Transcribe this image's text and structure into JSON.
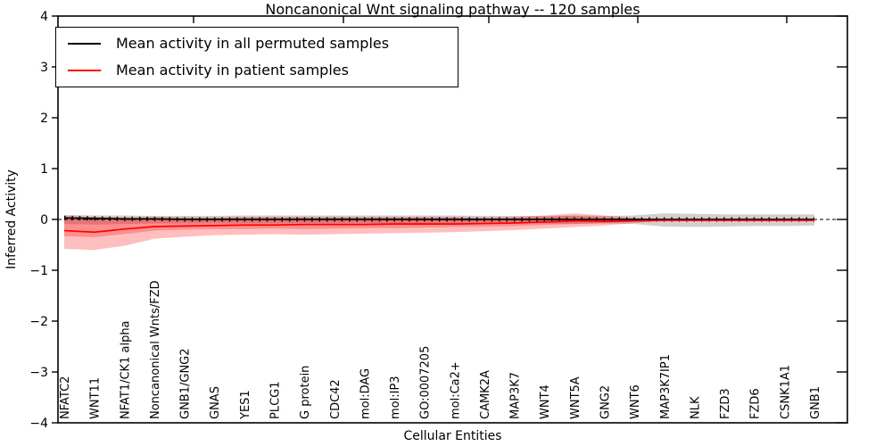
{
  "legend": {
    "items": [
      {
        "label": "Mean activity in all permuted samples",
        "color": "#000000"
      },
      {
        "label": "Mean activity in patient samples",
        "color": "#ff0000"
      }
    ]
  },
  "chart_data": {
    "type": "line",
    "title": "Noncanonical Wnt signaling pathway -- 120 samples",
    "xlabel": "Cellular Entities",
    "ylabel": "Inferred Activity",
    "ylim": [
      -4,
      4
    ],
    "grid": false,
    "legend_position": "upper left",
    "zero_line_dashed": true,
    "yticks": [
      {
        "value": 4,
        "label": "4"
      },
      {
        "value": 3,
        "label": "3"
      },
      {
        "value": 2,
        "label": "2"
      },
      {
        "value": 1,
        "label": "1"
      },
      {
        "value": 0,
        "label": "0"
      },
      {
        "value": -1,
        "label": "−1"
      },
      {
        "value": -2,
        "label": "−2"
      },
      {
        "value": -3,
        "label": "−3"
      },
      {
        "value": -4,
        "label": "−4"
      }
    ],
    "categories": [
      "NFATC2",
      "WNT11",
      "NFAT1/CK1 alpha",
      "Noncanonical Wnts/FZD",
      "GNB1/GNG2",
      "GNAS",
      "YES1",
      "PLCG1",
      "G protein",
      "CDC42",
      "mol:DAG",
      "mol:IP3",
      "GO:0007205",
      "mol:Ca2+",
      "CAMK2A",
      "MAP3K7",
      "WNT4",
      "WNT5A",
      "GNG2",
      "WNT6",
      "MAP3K7IP1",
      "NLK",
      "FZD3",
      "FZD6",
      "CSNK1A1",
      "GNB1"
    ],
    "series": [
      {
        "name": "Mean activity in all permuted samples",
        "color": "#000000",
        "markers": true,
        "values": [
          0.03,
          0.02,
          0.01,
          0.01,
          0,
          0,
          0,
          0,
          0,
          0,
          0,
          0,
          0,
          0,
          0,
          0,
          0,
          0,
          0,
          0,
          0,
          0,
          0,
          0,
          0,
          0
        ]
      },
      {
        "name": "Mean activity in patient samples",
        "color": "#ff0000",
        "markers": false,
        "values": [
          -0.22,
          -0.25,
          -0.19,
          -0.14,
          -0.13,
          -0.12,
          -0.11,
          -0.11,
          -0.1,
          -0.1,
          -0.1,
          -0.09,
          -0.09,
          -0.09,
          -0.08,
          -0.07,
          -0.05,
          -0.03,
          -0.04,
          -0.03,
          -0.02,
          -0.02,
          -0.02,
          -0.02,
          -0.02,
          -0.02
        ]
      }
    ],
    "bands": [
      {
        "name": "permuted-range",
        "color": "#777777",
        "opacity": 0.35,
        "upper": [
          0.09,
          0.08,
          0.08,
          0.07,
          0.07,
          0.07,
          0.08,
          0.08,
          0.08,
          0.08,
          0.08,
          0.08,
          0.08,
          0.08,
          0.07,
          0.07,
          0.07,
          0.08,
          0.07,
          0.08,
          0.12,
          0.11,
          0.1,
          0.1,
          0.1,
          0.1
        ],
        "lower": [
          -0.09,
          -0.1,
          -0.09,
          -0.08,
          -0.08,
          -0.08,
          -0.08,
          -0.08,
          -0.08,
          -0.08,
          -0.08,
          -0.08,
          -0.08,
          -0.08,
          -0.07,
          -0.07,
          -0.08,
          -0.09,
          -0.08,
          -0.09,
          -0.14,
          -0.15,
          -0.14,
          -0.13,
          -0.13,
          -0.12
        ]
      },
      {
        "name": "patient-range-outer",
        "color": "#ff0000",
        "opacity": 0.25,
        "upper": [
          0.07,
          0.05,
          0.04,
          0.05,
          0.04,
          0.04,
          0.05,
          0.05,
          0.05,
          0.05,
          0.05,
          0.05,
          0.05,
          0.05,
          0.04,
          0.05,
          0.08,
          0.12,
          0.08,
          0.03,
          -0.02,
          -0.02,
          -0.02,
          -0.02,
          -0.02,
          -0.02
        ],
        "lower": [
          -0.58,
          -0.6,
          -0.52,
          -0.38,
          -0.34,
          -0.31,
          -0.3,
          -0.29,
          -0.3,
          -0.29,
          -0.28,
          -0.27,
          -0.26,
          -0.25,
          -0.23,
          -0.21,
          -0.18,
          -0.15,
          -0.12,
          -0.07,
          -0.02,
          -0.02,
          -0.02,
          -0.02,
          -0.02,
          -0.02
        ]
      },
      {
        "name": "patient-range-inner",
        "color": "#ff0000",
        "opacity": 0.25,
        "upper": [
          0.04,
          0.03,
          0.03,
          0.03,
          0.03,
          0.03,
          0.03,
          0.03,
          0.03,
          0.03,
          0.03,
          0.03,
          0.03,
          0.03,
          0.02,
          0.03,
          0.05,
          0.07,
          0.04,
          0.01,
          -0.02,
          -0.02,
          -0.02,
          -0.02,
          -0.02,
          -0.02
        ],
        "lower": [
          -0.33,
          -0.35,
          -0.29,
          -0.22,
          -0.2,
          -0.19,
          -0.19,
          -0.18,
          -0.19,
          -0.18,
          -0.17,
          -0.17,
          -0.16,
          -0.15,
          -0.14,
          -0.13,
          -0.11,
          -0.09,
          -0.07,
          -0.04,
          -0.02,
          -0.02,
          -0.02,
          -0.02,
          -0.02,
          -0.02
        ]
      }
    ]
  }
}
